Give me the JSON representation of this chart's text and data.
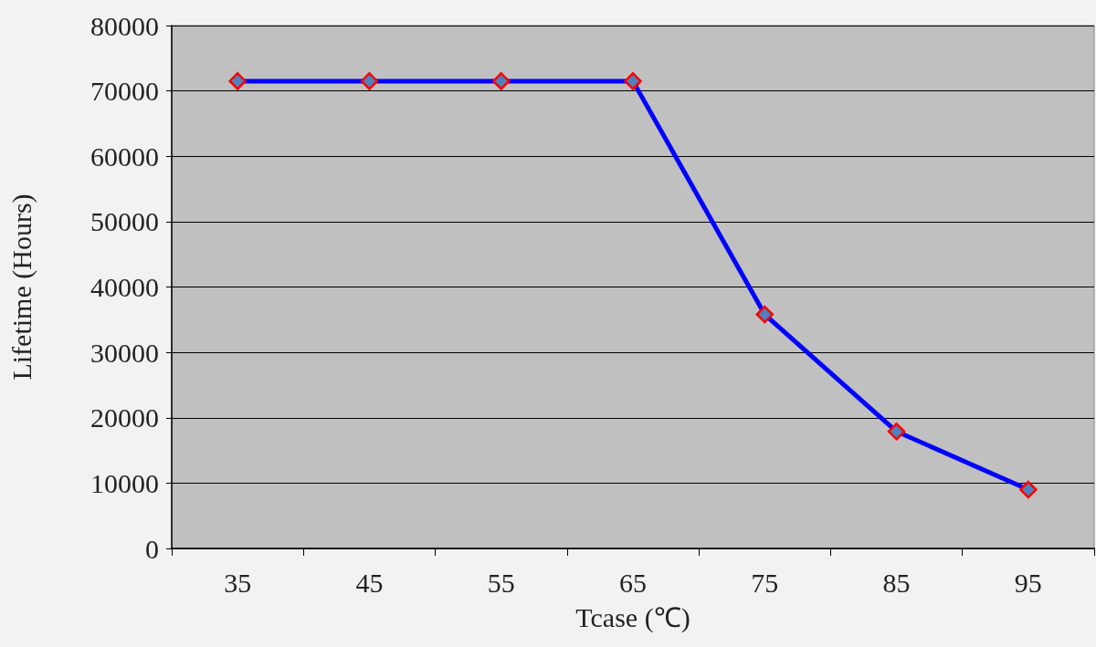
{
  "chart_data": {
    "type": "line",
    "xlabel": "Tcase (℃)",
    "ylabel": "Lifetime (Hours)",
    "categories": [
      "35",
      "45",
      "55",
      "65",
      "75",
      "85",
      "95"
    ],
    "series": [
      {
        "color": "#0000ff",
        "values": [
          71500,
          71500,
          71500,
          71500,
          35800,
          17900,
          9000
        ]
      }
    ],
    "ylim": [
      0,
      80000
    ],
    "yticks": [
      0,
      10000,
      20000,
      30000,
      40000,
      50000,
      60000,
      70000,
      80000
    ],
    "grid": "y",
    "marker": "diamond",
    "line_style": "solid"
  }
}
